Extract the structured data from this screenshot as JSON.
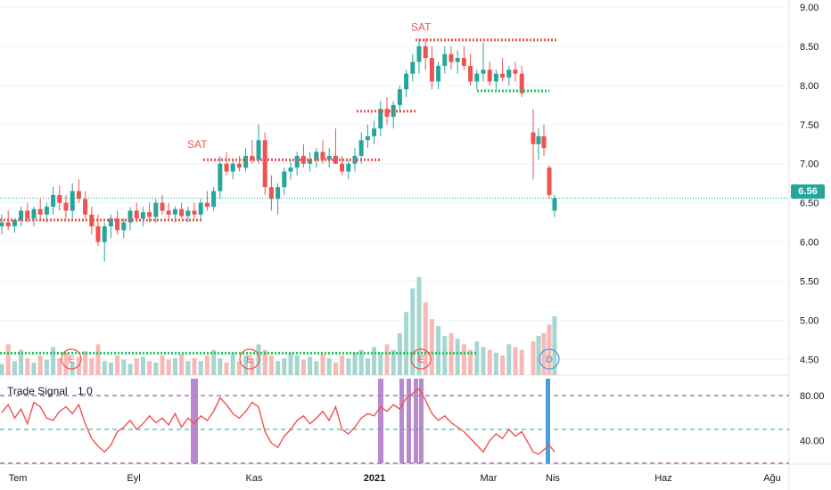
{
  "colors": {
    "up": "#26a69a",
    "down": "#ef5350",
    "grid": "#f0f3fa",
    "signal_line": "#ef5350",
    "sell_text": "#ef5350",
    "red_dots": "#ef5350",
    "green_dots": "#22c55e",
    "purple_bars": "#b07cc6",
    "blue_bar": "#4a9fd9",
    "band_upper": "#8e2a8e",
    "band_mid": "#1aa5a5",
    "band_lower": "#8e2a8e",
    "price_line": "#26a69a"
  },
  "price_axis": {
    "ticks": [
      "9.00",
      "8.50",
      "8.00",
      "7.50",
      "7.00",
      "6.50",
      "6.00",
      "5.50",
      "5.00",
      "4.50"
    ],
    "last_price": "6.56"
  },
  "time_axis": {
    "labels": [
      "Tem",
      "Eyl",
      "Kas",
      "2021",
      "Mar",
      "Nis",
      "Haz",
      "Ağu"
    ]
  },
  "indicator": {
    "name": "Trade Signal",
    "prefix_glyph": "",
    "suffix_glyph": "",
    "version": "1.0",
    "ticks": [
      "80.00",
      "40.00"
    ]
  },
  "sell_labels": [
    "SAT",
    "SAT"
  ],
  "event_markers": [
    "E",
    "E",
    "E",
    "D"
  ],
  "chart_data": {
    "type": "candlestick",
    "y_range": [
      4.3,
      9.0
    ],
    "indicator_range": [
      20,
      95
    ],
    "bands": [
      80,
      50,
      20
    ],
    "last_price": 6.56,
    "candles": [
      [
        6.2,
        6.35,
        6.1,
        6.25
      ],
      [
        6.25,
        6.4,
        6.15,
        6.2
      ],
      [
        6.2,
        6.3,
        6.12,
        6.28
      ],
      [
        6.28,
        6.45,
        6.2,
        6.4
      ],
      [
        6.4,
        6.5,
        6.25,
        6.3
      ],
      [
        6.3,
        6.45,
        6.2,
        6.42
      ],
      [
        6.42,
        6.55,
        6.3,
        6.35
      ],
      [
        6.35,
        6.5,
        6.25,
        6.45
      ],
      [
        6.45,
        6.7,
        6.35,
        6.6
      ],
      [
        6.6,
        6.72,
        6.4,
        6.5
      ],
      [
        6.5,
        6.6,
        6.3,
        6.4
      ],
      [
        6.4,
        6.75,
        6.3,
        6.65
      ],
      [
        6.65,
        6.8,
        6.5,
        6.55
      ],
      [
        6.55,
        6.65,
        6.3,
        6.35
      ],
      [
        6.35,
        6.45,
        6.1,
        6.2
      ],
      [
        6.2,
        6.35,
        5.95,
        6.0
      ],
      [
        6.0,
        6.25,
        5.75,
        6.2
      ],
      [
        6.2,
        6.35,
        6.05,
        6.3
      ],
      [
        6.3,
        6.4,
        6.1,
        6.15
      ],
      [
        6.15,
        6.3,
        6.05,
        6.25
      ],
      [
        6.25,
        6.45,
        6.15,
        6.4
      ],
      [
        6.4,
        6.5,
        6.25,
        6.3
      ],
      [
        6.3,
        6.45,
        6.2,
        6.38
      ],
      [
        6.38,
        6.5,
        6.25,
        6.32
      ],
      [
        6.32,
        6.55,
        6.25,
        6.5
      ],
      [
        6.5,
        6.6,
        6.35,
        6.4
      ],
      [
        6.4,
        6.5,
        6.3,
        6.35
      ],
      [
        6.35,
        6.45,
        6.25,
        6.42
      ],
      [
        6.42,
        6.5,
        6.3,
        6.33
      ],
      [
        6.33,
        6.45,
        6.25,
        6.4
      ],
      [
        6.4,
        6.5,
        6.3,
        6.35
      ],
      [
        6.35,
        6.55,
        6.3,
        6.5
      ],
      [
        6.5,
        6.65,
        6.4,
        6.45
      ],
      [
        6.45,
        6.7,
        6.4,
        6.65
      ],
      [
        6.65,
        7.1,
        6.55,
        7.0
      ],
      [
        7.0,
        7.15,
        6.85,
        6.9
      ],
      [
        6.9,
        7.05,
        6.8,
        7.0
      ],
      [
        7.0,
        7.1,
        6.9,
        6.95
      ],
      [
        6.95,
        7.2,
        6.9,
        7.1
      ],
      [
        7.1,
        7.3,
        7.0,
        7.05
      ],
      [
        7.05,
        7.5,
        7.0,
        7.3
      ],
      [
        7.3,
        7.4,
        6.6,
        6.7
      ],
      [
        6.7,
        6.85,
        6.4,
        6.55
      ],
      [
        6.55,
        6.75,
        6.35,
        6.7
      ],
      [
        6.7,
        6.95,
        6.6,
        6.9
      ],
      [
        6.9,
        7.05,
        6.8,
        6.95
      ],
      [
        6.95,
        7.15,
        6.85,
        7.1
      ],
      [
        7.1,
        7.25,
        6.95,
        7.0
      ],
      [
        7.0,
        7.15,
        6.9,
        7.05
      ],
      [
        7.05,
        7.2,
        6.95,
        7.15
      ],
      [
        7.15,
        7.3,
        7.0,
        7.05
      ],
      [
        7.05,
        7.2,
        6.95,
        7.1
      ],
      [
        7.1,
        7.45,
        7.0,
        7.0
      ],
      [
        7.0,
        7.1,
        6.85,
        6.9
      ],
      [
        6.9,
        7.05,
        6.8,
        7.0
      ],
      [
        7.0,
        7.2,
        6.9,
        7.1
      ],
      [
        7.1,
        7.4,
        7.0,
        7.3
      ],
      [
        7.3,
        7.5,
        7.2,
        7.35
      ],
      [
        7.35,
        7.55,
        7.25,
        7.45
      ],
      [
        7.45,
        7.8,
        7.35,
        7.7
      ],
      [
        7.7,
        7.85,
        7.5,
        7.6
      ],
      [
        7.6,
        7.8,
        7.45,
        7.75
      ],
      [
        7.75,
        8.0,
        7.65,
        7.95
      ],
      [
        7.95,
        8.2,
        7.85,
        8.15
      ],
      [
        8.15,
        8.4,
        8.05,
        8.3
      ],
      [
        8.3,
        8.6,
        8.15,
        8.5
      ],
      [
        8.5,
        8.6,
        8.2,
        8.35
      ],
      [
        8.35,
        8.5,
        7.95,
        8.05
      ],
      [
        8.05,
        8.3,
        7.95,
        8.25
      ],
      [
        8.25,
        8.5,
        8.15,
        8.4
      ],
      [
        8.4,
        8.5,
        8.2,
        8.3
      ],
      [
        8.3,
        8.45,
        8.15,
        8.35
      ],
      [
        8.35,
        8.5,
        8.2,
        8.25
      ],
      [
        8.25,
        8.4,
        8.0,
        8.05
      ],
      [
        8.05,
        8.2,
        7.95,
        8.15
      ],
      [
        8.15,
        8.55,
        8.05,
        8.2
      ],
      [
        8.2,
        8.3,
        8.0,
        8.05
      ],
      [
        8.05,
        8.2,
        7.95,
        8.15
      ],
      [
        8.15,
        8.35,
        8.05,
        8.1
      ],
      [
        8.1,
        8.25,
        8.0,
        8.2
      ],
      [
        8.2,
        8.3,
        8.05,
        8.15
      ],
      [
        8.15,
        8.25,
        7.85,
        7.9
      ],
      [
        7.4,
        7.7,
        6.8,
        7.25
      ],
      [
        7.25,
        7.45,
        7.05,
        7.35
      ],
      [
        7.35,
        7.5,
        7.1,
        7.2
      ],
      [
        6.95,
        6.98,
        6.55,
        6.6
      ],
      [
        6.4,
        6.6,
        6.32,
        6.56
      ]
    ],
    "volumes": [
      8,
      22,
      10,
      18,
      12,
      9,
      14,
      11,
      20,
      12,
      16,
      9,
      13,
      17,
      12,
      22,
      10,
      9,
      14,
      11,
      8,
      12,
      13,
      10,
      9,
      14,
      11,
      12,
      15,
      10,
      12,
      10,
      14,
      18,
      12,
      9,
      16,
      10,
      14,
      12,
      22,
      18,
      14,
      10,
      12,
      16,
      14,
      11,
      13,
      10,
      15,
      12,
      9,
      14,
      12,
      16,
      18,
      12,
      20,
      16,
      22,
      18,
      30,
      45,
      62,
      70,
      52,
      40,
      35,
      28,
      30,
      26,
      22,
      18,
      24,
      20,
      18,
      16,
      14,
      22,
      20,
      18,
      24,
      28,
      30,
      36,
      42
    ],
    "signal": [
      65,
      72,
      60,
      68,
      55,
      74,
      70,
      60,
      58,
      66,
      70,
      64,
      72,
      55,
      42,
      35,
      30,
      36,
      48,
      52,
      58,
      50,
      55,
      62,
      56,
      60,
      54,
      64,
      52,
      60,
      55,
      62,
      58,
      66,
      78,
      72,
      64,
      60,
      66,
      74,
      70,
      48,
      38,
      34,
      44,
      50,
      58,
      62,
      55,
      60,
      66,
      58,
      70,
      50,
      46,
      52,
      60,
      64,
      62,
      70,
      66,
      72,
      68,
      78,
      82,
      86,
      76,
      64,
      58,
      62,
      56,
      52,
      48,
      42,
      36,
      30,
      40,
      46,
      42,
      50,
      44,
      48,
      30,
      28,
      32,
      36,
      30
    ]
  }
}
